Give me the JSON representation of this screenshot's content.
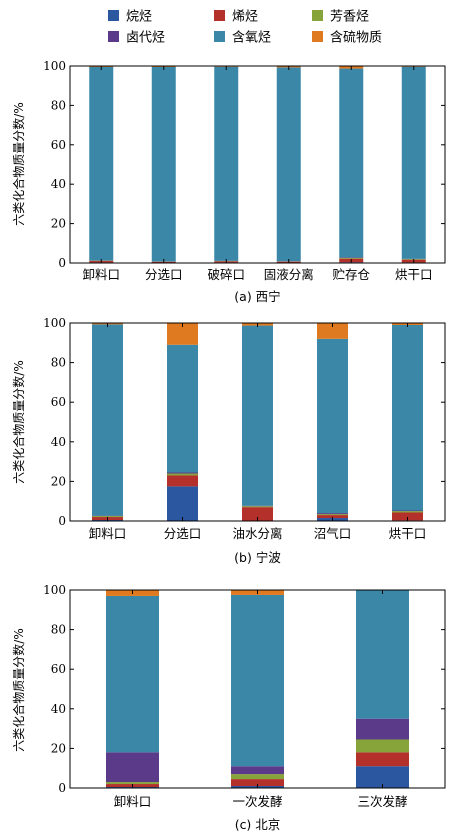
{
  "legend": {
    "items": [
      {
        "key": "alkane",
        "label": "烷烃",
        "color": "#2b56a0"
      },
      {
        "key": "alkene",
        "label": "烯烃",
        "color": "#b3302b"
      },
      {
        "key": "aromatic",
        "label": "芳香烃",
        "color": "#86a43a"
      },
      {
        "key": "halo",
        "label": "卤代烃",
        "color": "#5c3a8a"
      },
      {
        "key": "oxy",
        "label": "含氧烃",
        "color": "#3a87a8"
      },
      {
        "key": "sulfur",
        "label": "含硫物质",
        "color": "#e07a20"
      }
    ]
  },
  "chart_data": [
    {
      "type": "bar",
      "stacked": true,
      "caption": "(a) 西宁",
      "ylabel": "六类化合物质量分数/%",
      "ylim": [
        0,
        100
      ],
      "yticks": [
        "0",
        "20",
        "40",
        "60",
        "80",
        "100"
      ],
      "categories": [
        "卸料口",
        "分选口",
        "破碎口",
        "固液分离",
        "贮存仓",
        "烘干口"
      ],
      "series": [
        {
          "name": "烷烃",
          "values": [
            0.3,
            0.2,
            0.3,
            0.2,
            0.4,
            0.3
          ]
        },
        {
          "name": "烯烃",
          "values": [
            0.7,
            0.4,
            0.6,
            0.5,
            1.8,
            1.4
          ]
        },
        {
          "name": "芳香烃",
          "values": [
            0.2,
            0.1,
            0.1,
            0.1,
            0.4,
            0.3
          ]
        },
        {
          "name": "卤代烃",
          "values": [
            0.1,
            0.1,
            0.1,
            0.1,
            0.2,
            0.1
          ]
        },
        {
          "name": "含氧烃",
          "values": [
            98.2,
            98.7,
            98.5,
            98.4,
            95.9,
            97.5
          ]
        },
        {
          "name": "含硫物质",
          "values": [
            0.5,
            0.5,
            0.4,
            0.7,
            1.3,
            0.4
          ]
        }
      ]
    },
    {
      "type": "bar",
      "stacked": true,
      "caption": "(b) 宁波",
      "ylabel": "六类化合物质量分数/%",
      "ylim": [
        0,
        100
      ],
      "yticks": [
        "0",
        "20",
        "40",
        "60",
        "80",
        "100"
      ],
      "categories": [
        "卸料口",
        "分选口",
        "油水分离",
        "沼气口",
        "烘干口"
      ],
      "series": [
        {
          "name": "烷烃",
          "values": [
            0.5,
            17.5,
            0.2,
            1.5,
            0.3
          ]
        },
        {
          "name": "烯烃",
          "values": [
            1.5,
            5.5,
            6.8,
            1.5,
            4.0
          ]
        },
        {
          "name": "芳香烃",
          "values": [
            0.5,
            1.0,
            0.5,
            0.5,
            0.7
          ]
        },
        {
          "name": "卤代烃",
          "values": [
            0.2,
            0.5,
            0.2,
            0.5,
            0.3
          ]
        },
        {
          "name": "含氧烃",
          "values": [
            96.6,
            64.5,
            91.0,
            88.0,
            93.7
          ]
        },
        {
          "name": "含硫物质",
          "values": [
            0.7,
            11.0,
            1.3,
            8.0,
            1.0
          ]
        }
      ]
    },
    {
      "type": "bar",
      "stacked": true,
      "caption": "(c) 北京",
      "ylabel": "六类化合物质量分数/%",
      "ylim": [
        0,
        100
      ],
      "yticks": [
        "0",
        "20",
        "40",
        "60",
        "80",
        "100"
      ],
      "categories": [
        "卸料口",
        "一次发酵",
        "三次发酵"
      ],
      "series": [
        {
          "name": "烷烃",
          "values": [
            0.5,
            1.0,
            11.0
          ]
        },
        {
          "name": "烯烃",
          "values": [
            1.5,
            3.5,
            7.0
          ]
        },
        {
          "name": "芳香烃",
          "values": [
            1.0,
            2.5,
            6.5
          ]
        },
        {
          "name": "卤代烃",
          "values": [
            15.0,
            4.0,
            10.5
          ]
        },
        {
          "name": "含氧烃",
          "values": [
            79.0,
            86.5,
            65.0
          ]
        },
        {
          "name": "含硫物质",
          "values": [
            3.0,
            2.5,
            0.0
          ]
        }
      ]
    }
  ]
}
